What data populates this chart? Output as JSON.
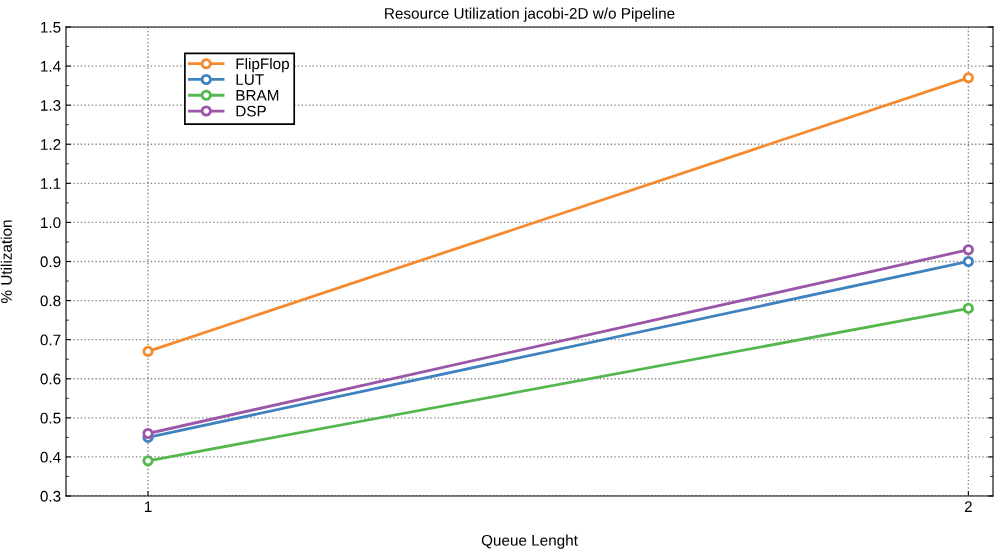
{
  "chart_data": {
    "type": "line",
    "title": "Resource Utilization jacobi-2D w/o Pipeline",
    "xlabel": "Queue Lenght",
    "ylabel": "% Utilization",
    "x": [
      1,
      2
    ],
    "series": [
      {
        "name": "FlipFlop",
        "color": "#f58a2e",
        "values": [
          0.67,
          1.37
        ]
      },
      {
        "name": "LUT",
        "color": "#3f82c0",
        "values": [
          0.45,
          0.9
        ]
      },
      {
        "name": "BRAM",
        "color": "#55b84e",
        "values": [
          0.39,
          0.78
        ]
      },
      {
        "name": "DSP",
        "color": "#9b55a9",
        "values": [
          0.46,
          0.93
        ]
      }
    ],
    "xlim": [
      0.9,
      2.03
    ],
    "xticks": [
      1,
      2
    ],
    "ylim": [
      0.3,
      1.5
    ],
    "yticks": [
      0.3,
      0.4,
      0.5,
      0.6,
      0.7,
      0.8,
      0.9,
      {
        "value": 1,
        "label": "1.0"
      },
      1.1,
      1.2,
      1.3,
      1.4,
      1.5
    ],
    "grid": true,
    "legend": "top left",
    "marker": "circle",
    "line_style": "solid"
  }
}
